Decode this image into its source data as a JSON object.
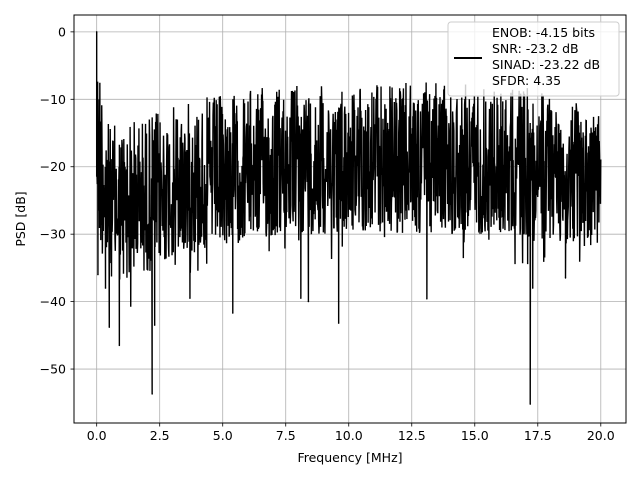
{
  "chart_data": {
    "type": "line",
    "xlabel": "Frequency [MHz]",
    "ylabel": "PSD [dB]",
    "xlim": [
      -0.9,
      21.0
    ],
    "ylim": [
      -58.0,
      2.5
    ],
    "xticks": [
      0.0,
      2.5,
      5.0,
      7.5,
      10.0,
      12.5,
      15.0,
      17.5,
      20.0
    ],
    "xtick_labels": [
      "0.0",
      "2.5",
      "5.0",
      "7.5",
      "10.0",
      "12.5",
      "15.0",
      "17.5",
      "20.0"
    ],
    "yticks": [
      0,
      -10,
      -20,
      -30,
      -40,
      -50
    ],
    "ytick_labels": [
      "0",
      "−10",
      "−20",
      "−30",
      "−40",
      "−50"
    ],
    "grid": true,
    "legend_placement": "top-right",
    "series": [
      {
        "name": "ENOB: -4.15 bits\nSNR: -23.2 dB\nSINAD: -23.22 dB\nSFDR: 4.35",
        "color": "#000000",
        "x_range": [
          0.0,
          20.0
        ],
        "envelope": {
          "x": [
            0.0,
            0.5,
            1.0,
            2.0,
            3.0,
            4.0,
            5.0,
            6.0,
            7.0,
            8.0,
            9.0,
            10.0,
            11.0,
            12.0,
            13.0,
            14.0,
            15.0,
            16.0,
            17.0,
            18.0,
            19.0,
            20.0
          ],
          "max": [
            0.0,
            -14.0,
            -13.0,
            -12.0,
            -11.0,
            -10.0,
            -9.0,
            -8.5,
            -8.0,
            -7.5,
            -7.5,
            -7.5,
            -7.5,
            -7.5,
            -7.5,
            -7.5,
            -7.5,
            -8.0,
            -8.0,
            -9.0,
            -10.5,
            -11.0
          ],
          "min": [
            -37.0,
            -40.0,
            -42.0,
            -40.0,
            -38.0,
            -37.0,
            -36.0,
            -35.0,
            -35.0,
            -34.0,
            -34.0,
            -34.0,
            -34.0,
            -34.0,
            -34.0,
            -34.0,
            -34.0,
            -34.0,
            -35.0,
            -35.0,
            -36.0,
            -36.0
          ]
        },
        "notable_points": [
          {
            "x": 0.0,
            "y": 0.0
          },
          {
            "x": 0.0,
            "y": -7.5
          },
          {
            "x": 0.05,
            "y": -36.0
          },
          {
            "x": 0.35,
            "y": -38.0
          },
          {
            "x": 0.5,
            "y": -43.8
          },
          {
            "x": 0.9,
            "y": -46.5
          },
          {
            "x": 2.2,
            "y": -53.7
          },
          {
            "x": 2.3,
            "y": -43.5
          },
          {
            "x": 3.7,
            "y": -39.5
          },
          {
            "x": 5.4,
            "y": -41.7
          },
          {
            "x": 8.1,
            "y": -39.5
          },
          {
            "x": 8.4,
            "y": -40.0
          },
          {
            "x": 9.6,
            "y": -43.2
          },
          {
            "x": 13.1,
            "y": -39.6
          },
          {
            "x": 17.2,
            "y": -55.2
          },
          {
            "x": 17.3,
            "y": -38.0
          },
          {
            "x": 18.6,
            "y": -36.5
          }
        ]
      }
    ]
  }
}
